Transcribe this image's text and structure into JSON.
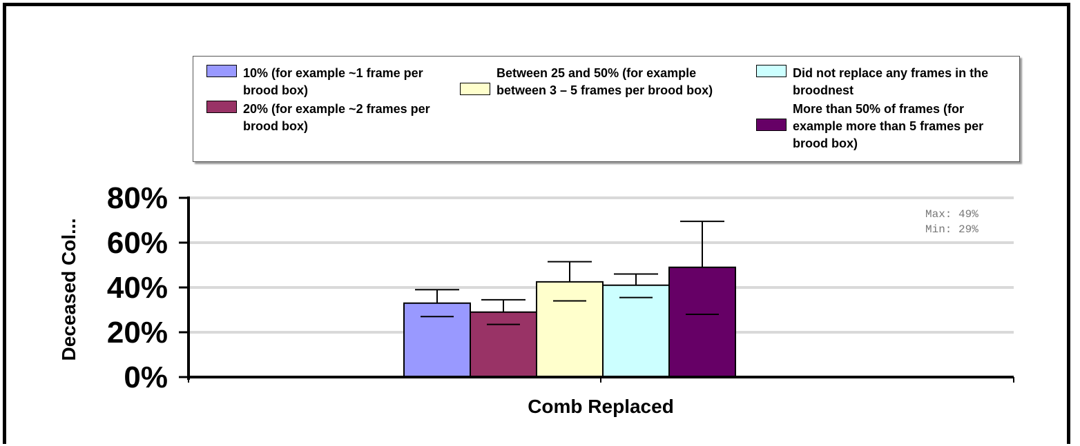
{
  "chart_data": {
    "type": "bar",
    "xlabel": "Comb Replaced",
    "ylabel": "Deceased Col...",
    "ylim": [
      0,
      80
    ],
    "yticks": [
      "0%",
      "20%",
      "40%",
      "60%",
      "80%"
    ],
    "ytick_values": [
      0,
      20,
      40,
      60,
      80
    ],
    "grid": true,
    "legend_position": "top",
    "series": [
      {
        "name": "10% (for example ~1 frame per brood box)",
        "value": 33,
        "err_low": 27,
        "err_high": 39,
        "color": "#9999ff"
      },
      {
        "name": "20% (for example ~2 frames per brood box)",
        "value": 29,
        "err_low": 23.5,
        "err_high": 34.5,
        "color": "#993366"
      },
      {
        "name": "Between 25 and 50% (for example between 3 – 5 frames per brood box)",
        "value": 42.5,
        "err_low": 34,
        "err_high": 51.5,
        "color": "#ffffcc"
      },
      {
        "name": "Did not replace any frames in the broodnest",
        "value": 41,
        "err_low": 35.5,
        "err_high": 46,
        "color": "#ccffff"
      },
      {
        "name": "More than 50% of frames (for example more than 5 frames per brood box)",
        "value": 49,
        "err_low": 28,
        "err_high": 69.5,
        "color": "#660066"
      }
    ],
    "annotation": {
      "max": "Max: 49%",
      "min": "Min: 29%"
    }
  }
}
